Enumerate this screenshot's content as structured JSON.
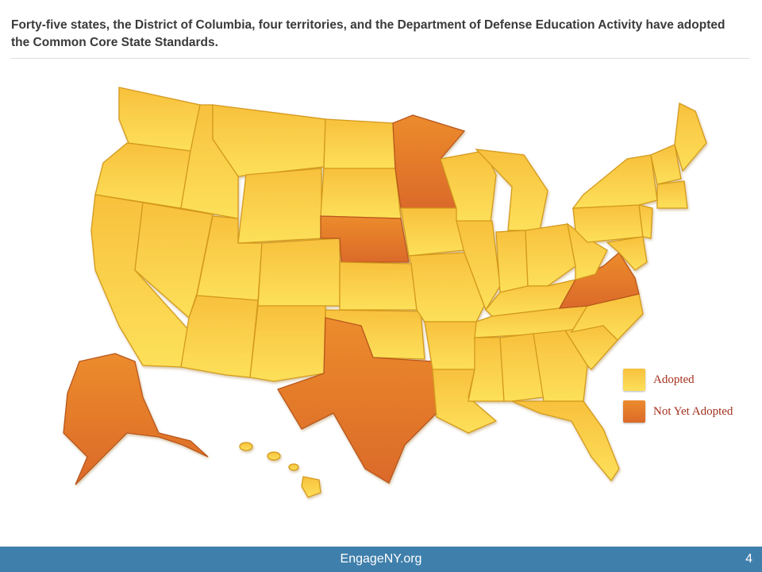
{
  "header": {
    "text": "Forty-five states, the District of Columbia, four territories, and the Department of Defense Education Activity have adopted the Common Core State Standards."
  },
  "legend": {
    "items": [
      {
        "label": "Adopted",
        "color": "#f7c640"
      },
      {
        "label": "Not Yet Adopted",
        "color": "#e2702a"
      }
    ]
  },
  "colors": {
    "adopted_light": "#fde357",
    "adopted_dark": "#f6b934",
    "not_yet_light": "#eb8a2c",
    "not_yet_dark": "#d9652a",
    "footer": "#3f7fab"
  },
  "map": {
    "not_yet_adopted": [
      "Alaska",
      "Minnesota",
      "Nebraska",
      "Texas",
      "Virginia"
    ]
  },
  "footer": {
    "site": "EngageNY.org",
    "page_number": "4"
  }
}
